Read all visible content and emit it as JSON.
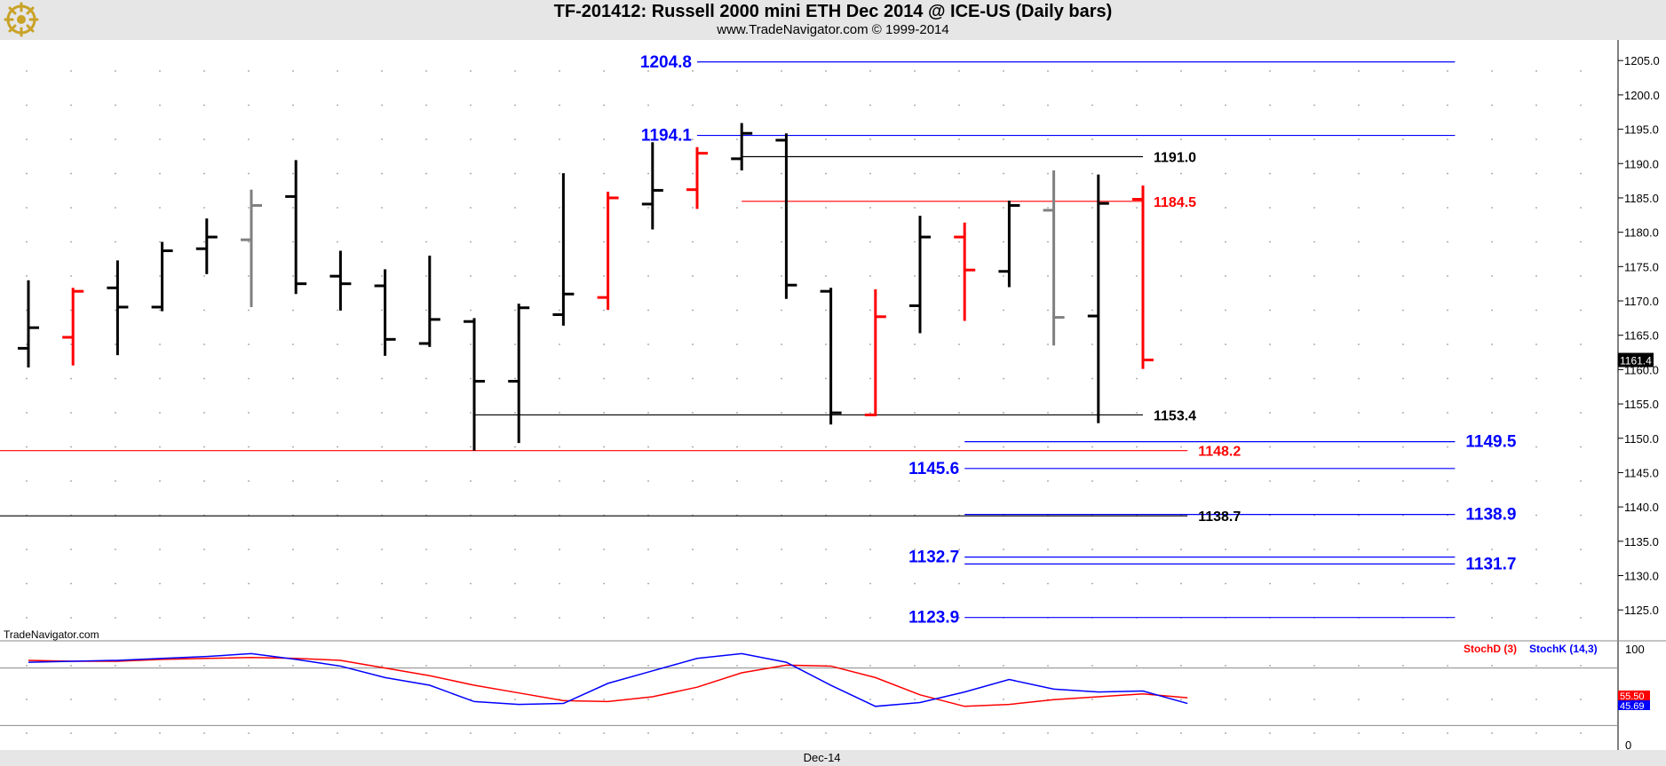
{
  "header": {
    "title": "TF-201412:  Russell 2000 mini ETH Dec 2014 @ ICE-US  (Daily bars)",
    "subtitle": "www.TradeNavigator.com © 1999-2014"
  },
  "watermark": "TradeNavigator.com",
  "colors": {
    "up_bar": "#000000",
    "down_bar": "#ff0000",
    "neutral_bar": "#808080",
    "projection_line": "#0000ff",
    "stoch_d": "#ff0000",
    "stoch_k": "#0000ff"
  },
  "chart_data": [
    {
      "type": "ohlc",
      "ylim": [
        1120.5,
        1208
      ],
      "yticks": [
        "1205.0",
        "1200.0",
        "1195.0",
        "1190.0",
        "1185.0",
        "1180.0",
        "1175.0",
        "1170.0",
        "1165.0",
        "1160.0",
        "1155.0",
        "1150.0",
        "1145.0",
        "1140.0",
        "1135.0",
        "1130.0",
        "1125.0"
      ],
      "xlabel_ticks": [
        {
          "label": "Dec-14",
          "bar_index": 18
        }
      ],
      "last_price_label": "1161.4",
      "bars": [
        {
          "o": 1163.1,
          "h": 1173.0,
          "l": 1160.3,
          "c": 1166.1,
          "color": "up"
        },
        {
          "o": 1164.7,
          "h": 1171.9,
          "l": 1160.6,
          "c": 1171.4,
          "color": "down"
        },
        {
          "o": 1171.9,
          "h": 1175.9,
          "l": 1162.1,
          "c": 1169.1,
          "color": "up"
        },
        {
          "o": 1169.1,
          "h": 1178.6,
          "l": 1168.5,
          "c": 1177.3,
          "color": "up"
        },
        {
          "o": 1177.6,
          "h": 1182.0,
          "l": 1173.9,
          "c": 1179.3,
          "color": "up"
        },
        {
          "o": 1178.9,
          "h": 1186.2,
          "l": 1169.1,
          "c": 1183.9,
          "color": "neutral"
        },
        {
          "o": 1185.2,
          "h": 1190.5,
          "l": 1171.0,
          "c": 1172.5,
          "color": "up"
        },
        {
          "o": 1173.6,
          "h": 1177.3,
          "l": 1168.6,
          "c": 1172.5,
          "color": "up"
        },
        {
          "o": 1172.2,
          "h": 1174.6,
          "l": 1162.0,
          "c": 1164.4,
          "color": "up"
        },
        {
          "o": 1163.8,
          "h": 1176.6,
          "l": 1163.3,
          "c": 1167.3,
          "color": "up"
        },
        {
          "o": 1167.0,
          "h": 1167.5,
          "l": 1148.2,
          "c": 1158.3,
          "color": "up"
        },
        {
          "o": 1158.3,
          "h": 1169.6,
          "l": 1149.3,
          "c": 1169.0,
          "color": "up"
        },
        {
          "o": 1168.0,
          "h": 1188.6,
          "l": 1166.4,
          "c": 1171.0,
          "color": "up"
        },
        {
          "o": 1170.5,
          "h": 1185.9,
          "l": 1168.7,
          "c": 1185.0,
          "color": "down"
        },
        {
          "o": 1184.1,
          "h": 1193.1,
          "l": 1180.4,
          "c": 1186.1,
          "color": "up"
        },
        {
          "o": 1186.2,
          "h": 1192.4,
          "l": 1183.4,
          "c": 1191.5,
          "color": "down"
        },
        {
          "o": 1190.7,
          "h": 1195.9,
          "l": 1189.0,
          "c": 1194.4,
          "color": "up"
        },
        {
          "o": 1193.4,
          "h": 1194.4,
          "l": 1170.3,
          "c": 1172.3,
          "color": "up"
        },
        {
          "o": 1171.4,
          "h": 1171.9,
          "l": 1152.0,
          "c": 1153.7,
          "color": "up"
        },
        {
          "o": 1153.4,
          "h": 1171.7,
          "l": 1153.2,
          "c": 1167.7,
          "color": "down"
        },
        {
          "o": 1169.3,
          "h": 1182.4,
          "l": 1165.3,
          "c": 1179.3,
          "color": "up"
        },
        {
          "o": 1179.3,
          "h": 1181.4,
          "l": 1167.1,
          "c": 1174.5,
          "color": "down"
        },
        {
          "o": 1174.3,
          "h": 1184.6,
          "l": 1172.0,
          "c": 1183.9,
          "color": "up"
        },
        {
          "o": 1183.2,
          "h": 1189.0,
          "l": 1163.5,
          "c": 1167.6,
          "color": "neutral"
        },
        {
          "o": 1167.8,
          "h": 1188.4,
          "l": 1152.2,
          "c": 1184.2,
          "color": "up"
        },
        {
          "o": 1184.8,
          "h": 1186.8,
          "l": 1160.1,
          "c": 1161.4,
          "color": "down"
        }
      ],
      "levels": [
        {
          "value": 1204.8,
          "label": "1204.8",
          "color": "blue",
          "from_bar": 15,
          "to_bar": 32,
          "label_side": "left"
        },
        {
          "value": 1194.1,
          "label": "1194.1",
          "color": "blue",
          "from_bar": 15,
          "to_bar": 32,
          "label_side": "left"
        },
        {
          "value": 1191.0,
          "label": "1191.0",
          "color": "black",
          "from_bar": 16,
          "to_bar": 25,
          "label_side": "right"
        },
        {
          "value": 1184.5,
          "label": "1184.5",
          "color": "red",
          "from_bar": 16,
          "to_bar": 25,
          "label_side": "right"
        },
        {
          "value": 1153.4,
          "label": "1153.4",
          "color": "black",
          "from_bar": 10,
          "to_bar": 25,
          "label_side": "right"
        },
        {
          "value": 1149.5,
          "label": "1149.5",
          "color": "blue",
          "from_bar": 21,
          "to_bar": 32,
          "label_side": "right"
        },
        {
          "value": 1148.2,
          "label": "1148.2",
          "color": "red",
          "from_bar": -1,
          "to_bar": 26,
          "label_side": "right"
        },
        {
          "value": 1145.6,
          "label": "1145.6",
          "color": "blue",
          "from_bar": 21,
          "to_bar": 32,
          "label_side": "left"
        },
        {
          "value": 1138.9,
          "label": "1138.9",
          "color": "blue",
          "from_bar": 21,
          "to_bar": 32,
          "label_side": "right"
        },
        {
          "value": 1138.7,
          "label": "1138.7",
          "color": "black",
          "from_bar": -1,
          "to_bar": 26,
          "label_side": "right"
        },
        {
          "value": 1132.7,
          "label": "1132.7",
          "color": "blue",
          "from_bar": 21,
          "to_bar": 32,
          "label_side": "left"
        },
        {
          "value": 1131.7,
          "label": "1131.7",
          "color": "blue",
          "from_bar": 21,
          "to_bar": 32,
          "label_side": "right"
        },
        {
          "value": 1123.9,
          "label": "1123.9",
          "color": "blue",
          "from_bar": 21,
          "to_bar": 32,
          "label_side": "left"
        }
      ]
    },
    {
      "type": "line",
      "ylim": [
        0,
        100
      ],
      "yticks": [
        "100",
        "0"
      ],
      "reference_lines": [
        80,
        20
      ],
      "legend": [
        "StochD (3)",
        "StochK (14,3)"
      ],
      "series": [
        {
          "name": "StochD (3)",
          "color": "red",
          "values": [
            88,
            87,
            87,
            89,
            90,
            91,
            90,
            88,
            80,
            72,
            62,
            54,
            46,
            45,
            50,
            60,
            75,
            83,
            82,
            70,
            52,
            40,
            42,
            47,
            50,
            53,
            49
          ],
          "last_label": "55.50"
        },
        {
          "name": "StochK (14,3)",
          "color": "blue",
          "values": [
            86,
            87,
            88,
            90,
            92,
            95,
            89,
            82,
            70,
            62,
            45,
            42,
            43,
            64,
            77,
            90,
            95,
            86,
            62,
            40,
            44,
            55,
            68,
            58,
            55,
            56,
            43
          ],
          "last_label": "45.69"
        }
      ]
    }
  ]
}
